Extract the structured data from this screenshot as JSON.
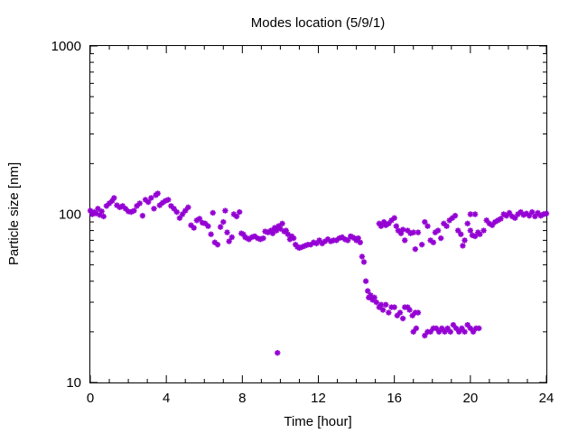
{
  "chart_data": {
    "type": "scatter",
    "title": "Modes location (5/9/1)",
    "xlabel": "Time [hour]",
    "ylabel": "Particle size [nm]",
    "xlim": [
      0,
      24
    ],
    "ylim": [
      10,
      1000
    ],
    "yscale": "log",
    "xticks": [
      0,
      4,
      8,
      12,
      16,
      20,
      24
    ],
    "yticks": [
      10,
      100,
      1000
    ],
    "grid": false,
    "marker_color": "#9400d3",
    "marker": "asterisk",
    "points": [
      [
        0.0,
        105
      ],
      [
        0.1,
        100
      ],
      [
        0.2,
        103
      ],
      [
        0.3,
        101
      ],
      [
        0.4,
        108
      ],
      [
        0.5,
        99
      ],
      [
        0.6,
        104
      ],
      [
        0.7,
        97
      ],
      [
        0.85,
        112
      ],
      [
        1.0,
        116
      ],
      [
        1.15,
        120
      ],
      [
        1.25,
        125
      ],
      [
        1.4,
        113
      ],
      [
        1.55,
        110
      ],
      [
        1.7,
        112
      ],
      [
        1.85,
        108
      ],
      [
        2.0,
        104
      ],
      [
        2.15,
        103
      ],
      [
        2.3,
        105
      ],
      [
        2.45,
        112
      ],
      [
        2.6,
        116
      ],
      [
        2.75,
        98
      ],
      [
        2.9,
        122
      ],
      [
        3.05,
        118
      ],
      [
        3.2,
        125
      ],
      [
        3.35,
        108
      ],
      [
        3.45,
        130
      ],
      [
        3.55,
        133
      ],
      [
        3.65,
        113
      ],
      [
        3.8,
        117
      ],
      [
        3.95,
        120
      ],
      [
        4.1,
        122
      ],
      [
        4.25,
        112
      ],
      [
        4.4,
        108
      ],
      [
        4.55,
        103
      ],
      [
        4.7,
        95
      ],
      [
        4.85,
        100
      ],
      [
        5.0,
        105
      ],
      [
        5.15,
        110
      ],
      [
        5.3,
        86
      ],
      [
        5.45,
        83
      ],
      [
        5.6,
        92
      ],
      [
        5.75,
        94
      ],
      [
        5.9,
        89
      ],
      [
        6.05,
        88
      ],
      [
        6.2,
        85
      ],
      [
        6.35,
        76
      ],
      [
        6.45,
        102
      ],
      [
        6.55,
        68
      ],
      [
        6.7,
        66
      ],
      [
        6.85,
        84
      ],
      [
        7.0,
        90
      ],
      [
        7.1,
        105
      ],
      [
        7.2,
        78
      ],
      [
        7.3,
        69
      ],
      [
        7.45,
        73
      ],
      [
        7.55,
        100
      ],
      [
        7.7,
        97
      ],
      [
        7.85,
        103
      ],
      [
        7.95,
        77
      ],
      [
        8.05,
        76
      ],
      [
        8.15,
        73
      ],
      [
        8.25,
        72
      ],
      [
        8.35,
        71
      ],
      [
        8.5,
        73
      ],
      [
        8.65,
        74
      ],
      [
        8.8,
        72
      ],
      [
        8.95,
        71
      ],
      [
        9.1,
        72
      ],
      [
        9.2,
        79
      ],
      [
        9.35,
        78
      ],
      [
        9.5,
        80
      ],
      [
        9.6,
        77
      ],
      [
        9.7,
        83
      ],
      [
        9.8,
        80
      ],
      [
        9.9,
        85
      ],
      [
        10.0,
        82
      ],
      [
        10.1,
        88
      ],
      [
        10.2,
        79
      ],
      [
        10.3,
        80
      ],
      [
        10.4,
        76
      ],
      [
        10.5,
        71
      ],
      [
        10.6,
        74
      ],
      [
        10.7,
        72
      ],
      [
        10.8,
        66
      ],
      [
        10.9,
        64
      ],
      [
        11.0,
        63
      ],
      [
        11.15,
        64
      ],
      [
        11.3,
        65
      ],
      [
        11.45,
        66
      ],
      [
        11.6,
        66
      ],
      [
        11.75,
        68
      ],
      [
        11.9,
        67
      ],
      [
        12.05,
        70
      ],
      [
        12.2,
        67
      ],
      [
        12.35,
        69
      ],
      [
        12.5,
        71
      ],
      [
        12.65,
        69
      ],
      [
        12.8,
        70
      ],
      [
        12.95,
        70
      ],
      [
        13.1,
        72
      ],
      [
        13.25,
        73
      ],
      [
        13.4,
        71
      ],
      [
        13.55,
        70
      ],
      [
        13.7,
        74
      ],
      [
        13.8,
        73
      ],
      [
        13.9,
        72
      ],
      [
        14.0,
        70
      ],
      [
        14.1,
        72
      ],
      [
        14.2,
        68
      ],
      [
        14.3,
        56
      ],
      [
        14.4,
        52
      ],
      [
        14.5,
        40
      ],
      [
        14.6,
        35
      ],
      [
        14.65,
        32
      ],
      [
        14.75,
        33
      ],
      [
        14.85,
        31
      ],
      [
        14.95,
        32
      ],
      [
        15.05,
        30
      ],
      [
        15.2,
        28
      ],
      [
        15.3,
        29
      ],
      [
        15.4,
        27
      ],
      [
        15.55,
        29
      ],
      [
        15.7,
        26
      ],
      [
        15.85,
        28
      ],
      [
        16.0,
        28
      ],
      [
        16.15,
        25
      ],
      [
        16.3,
        26
      ],
      [
        16.45,
        24
      ],
      [
        16.55,
        28
      ],
      [
        16.7,
        28
      ],
      [
        16.8,
        27
      ],
      [
        16.95,
        25
      ],
      [
        17.1,
        26
      ],
      [
        17.25,
        26
      ],
      [
        17.0,
        20
      ],
      [
        17.15,
        21
      ],
      [
        17.6,
        19
      ],
      [
        17.75,
        20
      ],
      [
        17.9,
        20
      ],
      [
        18.05,
        21
      ],
      [
        18.2,
        21
      ],
      [
        18.35,
        20
      ],
      [
        18.5,
        21
      ],
      [
        18.65,
        20
      ],
      [
        18.8,
        21
      ],
      [
        18.95,
        20
      ],
      [
        19.1,
        22
      ],
      [
        19.25,
        21
      ],
      [
        19.4,
        20
      ],
      [
        19.55,
        21
      ],
      [
        19.7,
        20
      ],
      [
        19.85,
        22
      ],
      [
        20.0,
        21
      ],
      [
        20.15,
        20
      ],
      [
        20.3,
        21
      ],
      [
        20.45,
        21
      ],
      [
        15.2,
        88
      ],
      [
        15.3,
        85
      ],
      [
        15.45,
        90
      ],
      [
        15.55,
        86
      ],
      [
        15.7,
        88
      ],
      [
        15.85,
        92
      ],
      [
        16.0,
        95
      ],
      [
        16.1,
        85
      ],
      [
        16.2,
        80
      ],
      [
        16.35,
        77
      ],
      [
        16.45,
        81
      ],
      [
        16.55,
        70
      ],
      [
        16.7,
        80
      ],
      [
        16.85,
        77
      ],
      [
        17.0,
        78
      ],
      [
        17.1,
        62
      ],
      [
        17.25,
        78
      ],
      [
        17.45,
        66
      ],
      [
        17.6,
        90
      ],
      [
        17.75,
        85
      ],
      [
        17.9,
        70
      ],
      [
        18.05,
        68
      ],
      [
        18.15,
        78
      ],
      [
        18.3,
        80
      ],
      [
        18.45,
        72
      ],
      [
        18.6,
        88
      ],
      [
        18.75,
        85
      ],
      [
        18.9,
        92
      ],
      [
        19.05,
        95
      ],
      [
        19.2,
        98
      ],
      [
        19.35,
        80
      ],
      [
        19.5,
        76
      ],
      [
        19.6,
        65
      ],
      [
        19.7,
        70
      ],
      [
        19.85,
        88
      ],
      [
        20.0,
        80
      ],
      [
        20.1,
        75
      ],
      [
        20.25,
        74
      ],
      [
        20.4,
        78
      ],
      [
        20.5,
        76
      ],
      [
        20.7,
        80
      ],
      [
        20.85,
        92
      ],
      [
        21.0,
        88
      ],
      [
        21.15,
        86
      ],
      [
        21.3,
        90
      ],
      [
        21.45,
        92
      ],
      [
        21.6,
        94
      ],
      [
        21.75,
        100
      ],
      [
        21.9,
        98
      ],
      [
        22.05,
        102
      ],
      [
        22.2,
        97
      ],
      [
        22.35,
        95
      ],
      [
        22.5,
        100
      ],
      [
        22.65,
        103
      ],
      [
        22.8,
        99
      ],
      [
        22.95,
        101
      ],
      [
        23.1,
        98
      ],
      [
        23.25,
        103
      ],
      [
        23.4,
        97
      ],
      [
        23.55,
        102
      ],
      [
        23.7,
        98
      ],
      [
        23.85,
        100
      ],
      [
        24.0,
        101
      ],
      [
        20.0,
        100
      ],
      [
        20.25,
        100
      ],
      [
        9.85,
        15
      ]
    ]
  }
}
